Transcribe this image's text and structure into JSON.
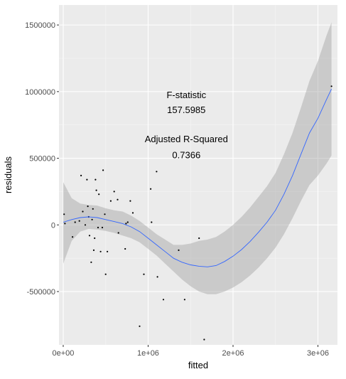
{
  "chart_data": {
    "type": "scatter",
    "xlabel": "fitted",
    "ylabel": "residuals",
    "xlim": [
      -50000,
      3230000
    ],
    "ylim": [
      -900000,
      1650000
    ],
    "x_ticks": [
      {
        "value": 0,
        "label": "0e+00"
      },
      {
        "value": 1000000,
        "label": "1e+06"
      },
      {
        "value": 2000000,
        "label": "2e+06"
      },
      {
        "value": 3000000,
        "label": "3e+06"
      }
    ],
    "y_ticks": [
      {
        "value": -500000,
        "label": "-500000"
      },
      {
        "value": 0,
        "label": "0"
      },
      {
        "value": 500000,
        "label": "500000"
      },
      {
        "value": 1000000,
        "label": "1000000"
      },
      {
        "value": 1500000,
        "label": "1500000"
      }
    ],
    "grid": true,
    "background": "#ebebeb",
    "points": [
      {
        "x": 10000,
        "y": 80000
      },
      {
        "x": 20000,
        "y": 10000
      },
      {
        "x": 110000,
        "y": -90000
      },
      {
        "x": 140000,
        "y": 20000
      },
      {
        "x": 190000,
        "y": 30000
      },
      {
        "x": 210000,
        "y": 370000
      },
      {
        "x": 230000,
        "y": 100000
      },
      {
        "x": 260000,
        "y": 0
      },
      {
        "x": 280000,
        "y": 340000
      },
      {
        "x": 290000,
        "y": 140000
      },
      {
        "x": 300000,
        "y": 60000
      },
      {
        "x": 310000,
        "y": -80000
      },
      {
        "x": 330000,
        "y": -280000
      },
      {
        "x": 340000,
        "y": 40000
      },
      {
        "x": 350000,
        "y": 120000
      },
      {
        "x": 360000,
        "y": -190000
      },
      {
        "x": 370000,
        "y": -100000
      },
      {
        "x": 380000,
        "y": 340000
      },
      {
        "x": 390000,
        "y": 260000
      },
      {
        "x": 410000,
        "y": -20000
      },
      {
        "x": 420000,
        "y": 230000
      },
      {
        "x": 440000,
        "y": -200000
      },
      {
        "x": 460000,
        "y": -20000
      },
      {
        "x": 470000,
        "y": 410000
      },
      {
        "x": 490000,
        "y": 80000
      },
      {
        "x": 500000,
        "y": -370000
      },
      {
        "x": 520000,
        "y": -200000
      },
      {
        "x": 560000,
        "y": 180000
      },
      {
        "x": 600000,
        "y": 250000
      },
      {
        "x": 640000,
        "y": 190000
      },
      {
        "x": 650000,
        "y": -60000
      },
      {
        "x": 730000,
        "y": -180000
      },
      {
        "x": 740000,
        "y": 10000
      },
      {
        "x": 760000,
        "y": 20000
      },
      {
        "x": 790000,
        "y": 180000
      },
      {
        "x": 820000,
        "y": 90000
      },
      {
        "x": 900000,
        "y": -760000
      },
      {
        "x": 950000,
        "y": -370000
      },
      {
        "x": 1030000,
        "y": 270000
      },
      {
        "x": 1040000,
        "y": 20000
      },
      {
        "x": 1100000,
        "y": 400000
      },
      {
        "x": 1110000,
        "y": -390000
      },
      {
        "x": 1180000,
        "y": -560000
      },
      {
        "x": 1360000,
        "y": -190000
      },
      {
        "x": 1430000,
        "y": -560000
      },
      {
        "x": 1600000,
        "y": -100000
      },
      {
        "x": 1660000,
        "y": -860000
      },
      {
        "x": 3160000,
        "y": 1040000
      }
    ],
    "smooth": {
      "color": "#3366ff",
      "band_color": "#999999",
      "x": [
        0,
        100000,
        200000,
        300000,
        400000,
        500000,
        600000,
        700000,
        800000,
        900000,
        1000000,
        1100000,
        1200000,
        1300000,
        1400000,
        1500000,
        1600000,
        1700000,
        1800000,
        1900000,
        2000000,
        2100000,
        2200000,
        2300000,
        2400000,
        2500000,
        2600000,
        2700000,
        2800000,
        2900000,
        3000000,
        3100000,
        3160000
      ],
      "y": [
        20000,
        40000,
        55000,
        60000,
        55000,
        40000,
        25000,
        10000,
        -15000,
        -50000,
        -100000,
        -150000,
        -200000,
        -250000,
        -280000,
        -300000,
        -310000,
        -315000,
        -305000,
        -275000,
        -235000,
        -185000,
        -125000,
        -55000,
        20000,
        110000,
        230000,
        370000,
        530000,
        690000,
        800000,
        940000,
        1020000
      ],
      "ymin": [
        -290000,
        -120000,
        -50000,
        -30000,
        -35000,
        -45000,
        -60000,
        -80000,
        -100000,
        -130000,
        -180000,
        -230000,
        -290000,
        -350000,
        -410000,
        -460000,
        -500000,
        -520000,
        -520000,
        -500000,
        -470000,
        -430000,
        -380000,
        -320000,
        -250000,
        -170000,
        -70000,
        50000,
        180000,
        300000,
        370000,
        460000,
        520000
      ],
      "ymax": [
        320000,
        200000,
        160000,
        150000,
        145000,
        125000,
        110000,
        100000,
        70000,
        30000,
        -20000,
        -70000,
        -110000,
        -150000,
        -150000,
        -140000,
        -120000,
        -110000,
        -90000,
        -50000,
        0,
        60000,
        130000,
        210000,
        290000,
        390000,
        530000,
        690000,
        880000,
        1080000,
        1230000,
        1420000,
        1520000
      ]
    },
    "annotations": [
      {
        "text": "F-statistic",
        "x": 1450000,
        "y": 950000
      },
      {
        "text": "157.5985",
        "x": 1450000,
        "y": 840000
      },
      {
        "text": "Adjusted R-Squared",
        "x": 1450000,
        "y": 620000
      },
      {
        "text": "0.7366",
        "x": 1450000,
        "y": 500000
      }
    ]
  }
}
